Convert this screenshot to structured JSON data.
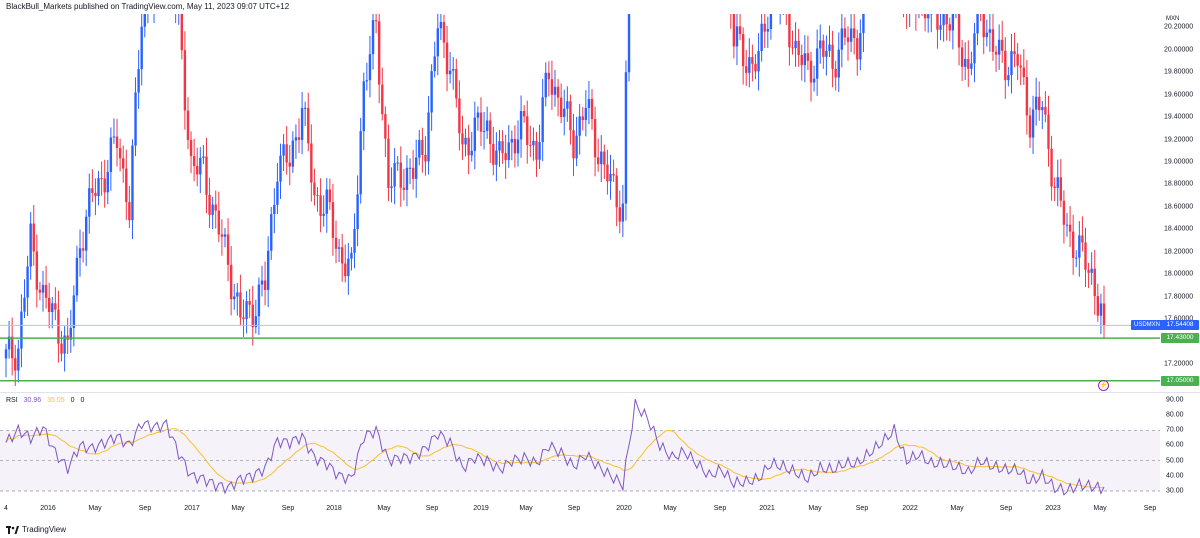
{
  "header": {
    "text": "BlackBull_Markets published on TradingView.com, May 11, 2023 09:07 UTC+12"
  },
  "colors": {
    "up": "#2962ff",
    "down": "#f23645",
    "support": "#4caf50",
    "rsi": "#7e57c2",
    "rsi_ma": "#fbc02d",
    "rsi_band": "#7e57c2"
  },
  "price_axis": {
    "currency": "MXN",
    "ticks": [
      "20.20000",
      "20.00000",
      "19.80000",
      "19.60000",
      "19.40000",
      "19.20000",
      "19.00000",
      "18.80000",
      "18.60000",
      "18.40000",
      "18.20000",
      "18.00000",
      "17.80000",
      "17.60000",
      "17.20000"
    ],
    "current_price": {
      "symbol": "USDMXN",
      "value": "17.54408"
    }
  },
  "levels": [
    {
      "name": "support-upper",
      "value": "17.43000"
    },
    {
      "name": "support-lower",
      "value": "17.05000"
    }
  ],
  "rsi": {
    "legend": {
      "name": "RSI",
      "value": "30.96",
      "ma_value": "35.05",
      "extra1": "0",
      "extra2": "0"
    },
    "ticks": [
      "90.00",
      "80.00",
      "70.00",
      "60.00",
      "50.00",
      "40.00",
      "30.00"
    ]
  },
  "time_axis": {
    "labels": [
      "4",
      "2016",
      "May",
      "Sep",
      "2017",
      "May",
      "Sep",
      "2018",
      "May",
      "Sep",
      "2019",
      "May",
      "Sep",
      "2020",
      "May",
      "Sep",
      "2021",
      "May",
      "Sep",
      "2022",
      "May",
      "Sep",
      "2023",
      "May",
      "Sep"
    ]
  },
  "branding": {
    "logo_text": "TradingView"
  },
  "chart_data": {
    "type": "candlestick",
    "symbol": "USDMXN",
    "interval": "weekly",
    "ylim": [
      16.95,
      20.32
    ],
    "x": [
      "2015-12",
      "2016-01",
      "2016-02",
      "2016-03",
      "2016-04",
      "2016-05",
      "2016-06",
      "2016-07",
      "2016-08",
      "2016-09",
      "2016-10",
      "2016-11",
      "2016-12",
      "2017-01",
      "2017-02",
      "2017-03",
      "2017-04",
      "2017-05",
      "2017-06",
      "2017-07",
      "2017-08",
      "2017-09",
      "2017-10",
      "2017-11",
      "2017-12",
      "2018-01",
      "2018-02",
      "2018-03",
      "2018-04",
      "2018-05",
      "2018-06",
      "2018-07",
      "2018-08",
      "2018-09",
      "2018-10",
      "2018-11",
      "2018-12",
      "2019-01",
      "2019-02",
      "2019-03",
      "2019-04",
      "2019-05",
      "2019-06",
      "2019-07",
      "2019-08",
      "2019-09",
      "2019-10",
      "2019-11",
      "2019-12",
      "2020-01",
      "2020-02",
      "2020-03",
      "2020-04",
      "2020-05",
      "2020-06",
      "2020-07",
      "2020-08",
      "2020-09",
      "2020-10",
      "2020-11",
      "2020-12",
      "2021-01",
      "2021-02",
      "2021-03",
      "2021-04",
      "2021-05",
      "2021-06",
      "2021-07",
      "2021-08",
      "2021-09",
      "2021-10",
      "2021-11",
      "2021-12",
      "2022-01",
      "2022-02",
      "2022-03",
      "2022-04",
      "2022-05",
      "2022-06",
      "2022-07",
      "2022-08",
      "2022-09",
      "2022-10",
      "2022-11",
      "2022-12",
      "2023-01",
      "2023-02",
      "2023-03",
      "2023-04",
      "2023-05"
    ],
    "close": [
      17.25,
      17.35,
      18.3,
      17.8,
      17.6,
      17.3,
      18.3,
      18.7,
      18.9,
      19.2,
      18.6,
      20.3,
      20.6,
      21.0,
      20.2,
      19.0,
      18.9,
      18.5,
      18.1,
      17.6,
      17.7,
      17.9,
      19.0,
      19.0,
      19.5,
      18.7,
      18.6,
      18.2,
      18.0,
      19.7,
      20.2,
      18.8,
      18.9,
      18.9,
      19.2,
      20.2,
      19.9,
      19.1,
      19.3,
      19.3,
      19.0,
      19.2,
      19.3,
      19.1,
      19.8,
      19.5,
      19.2,
      19.5,
      19.1,
      18.8,
      18.6,
      23.0,
      24.0,
      22.5,
      22.0,
      22.3,
      21.9,
      21.2,
      21.4,
      20.1,
      19.9,
      19.9,
      20.5,
      20.4,
      20.0,
      19.8,
      20.0,
      19.9,
      20.1,
      20.1,
      20.6,
      20.7,
      21.2,
      20.3,
      20.5,
      20.3,
      20.3,
      20.2,
      19.8,
      20.4,
      20.0,
      19.9,
      19.9,
      19.4,
      19.5,
      18.8,
      18.4,
      18.2,
      18.0,
      17.54
    ],
    "rsi": [
      62,
      70,
      65,
      72,
      55,
      45,
      60,
      58,
      62,
      66,
      60,
      75,
      72,
      74,
      55,
      40,
      38,
      34,
      32,
      38,
      40,
      45,
      63,
      62,
      66,
      52,
      48,
      40,
      38,
      66,
      70,
      50,
      52,
      52,
      58,
      68,
      62,
      45,
      52,
      50,
      44,
      50,
      52,
      48,
      60,
      55,
      46,
      54,
      46,
      40,
      34,
      87,
      78,
      60,
      52,
      56,
      48,
      40,
      44,
      35,
      36,
      38,
      48,
      46,
      42,
      38,
      45,
      44,
      48,
      48,
      55,
      62,
      70,
      50,
      54,
      48,
      48,
      46,
      42,
      50,
      46,
      44,
      44,
      36,
      40,
      32,
      30,
      34,
      33,
      31
    ]
  }
}
